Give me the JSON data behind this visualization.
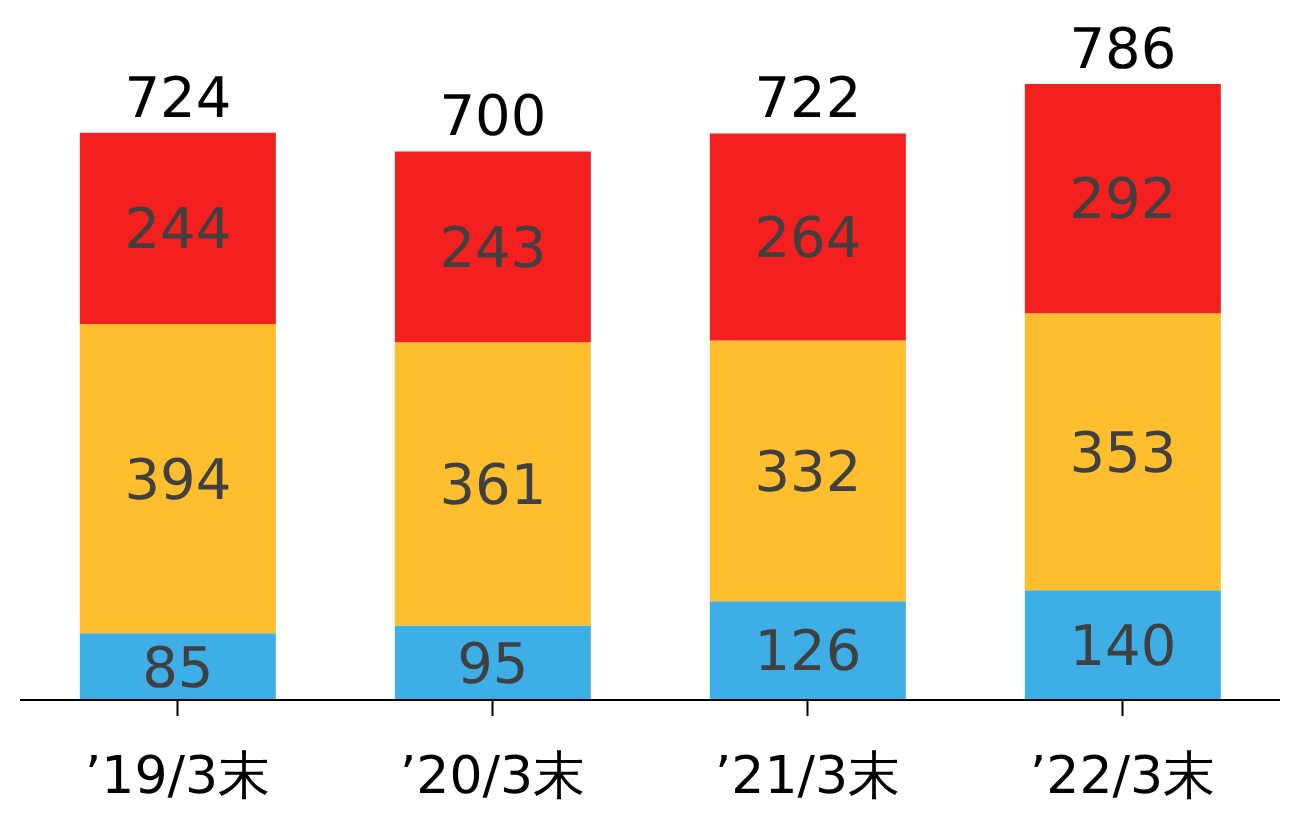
{
  "chart_data": {
    "type": "bar",
    "stacked": true,
    "data_labels": true,
    "categories": [
      "’19/3末",
      "’20/3末",
      "’21/3末",
      "’22/3末"
    ],
    "series": [
      {
        "color": "#3eaee6",
        "values": [
          85,
          95,
          126,
          140
        ]
      },
      {
        "color": "#ffbe2e",
        "values": [
          394,
          361,
          332,
          353
        ]
      },
      {
        "color": "#f42020",
        "values": [
          244,
          243,
          264,
          292
        ]
      }
    ],
    "totals": [
      "724",
      "700",
      "722",
      "786"
    ]
  }
}
